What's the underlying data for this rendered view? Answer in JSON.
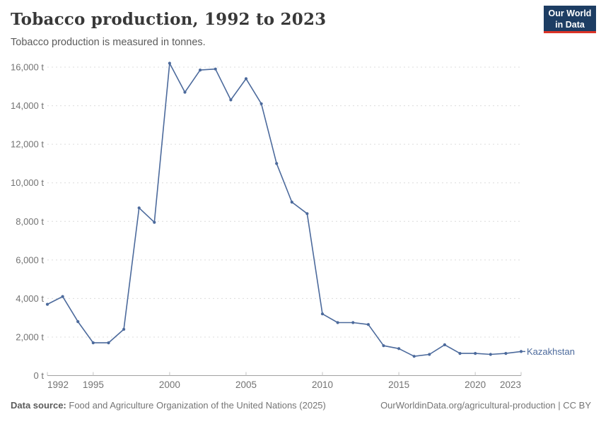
{
  "header": {
    "title": "Tobacco production, 1992 to 2023",
    "subtitle": "Tobacco production is measured in tonnes.",
    "logo": {
      "line1": "Our World",
      "line2": "in Data",
      "bg_color": "#1d3d63",
      "accent_color": "#dc3327"
    }
  },
  "chart_data": {
    "type": "line",
    "title": "Tobacco production, 1992 to 2023",
    "subtitle": "Tobacco production is measured in tonnes.",
    "xlabel": "",
    "ylabel": "",
    "unit": "t",
    "grid": "horizontal-dashed",
    "legend_position": "end-of-line-label",
    "x_range": [
      1992,
      2023
    ],
    "ylim": [
      0,
      16000
    ],
    "colors": {
      "line": "#4C6A9C",
      "gridline": "#dcdcdc",
      "axis": "#a1a1a1",
      "tick": "#c3c3c3",
      "axis_text": "#737373"
    },
    "series": [
      {
        "name": "Kazakhstan",
        "color": "#4C6A9C",
        "x": [
          1992,
          1993,
          1994,
          1995,
          1996,
          1997,
          1998,
          1999,
          2000,
          2001,
          2002,
          2003,
          2004,
          2005,
          2006,
          2007,
          2008,
          2009,
          2010,
          2011,
          2012,
          2013,
          2014,
          2015,
          2016,
          2017,
          2018,
          2019,
          2020,
          2021,
          2022,
          2023
        ],
        "values": [
          3700,
          4100,
          2800,
          1700,
          1700,
          2400,
          8700,
          7950,
          16200,
          14700,
          15850,
          15900,
          14300,
          15400,
          14100,
          11000,
          9000,
          8400,
          3200,
          2750,
          2750,
          2650,
          1550,
          1400,
          1000,
          1100,
          1600,
          1150,
          1150,
          1100,
          1150,
          1250
        ]
      }
    ],
    "yticks": [
      {
        "v": 0,
        "label": "0 t"
      },
      {
        "v": 2000,
        "label": "2,000 t"
      },
      {
        "v": 4000,
        "label": "4,000 t"
      },
      {
        "v": 6000,
        "label": "6,000 t"
      },
      {
        "v": 8000,
        "label": "8,000 t"
      },
      {
        "v": 10000,
        "label": "10,000 t"
      },
      {
        "v": 12000,
        "label": "12,000 t"
      },
      {
        "v": 14000,
        "label": "14,000 t"
      },
      {
        "v": 16000,
        "label": "16,000 t"
      }
    ],
    "xticks": [
      {
        "v": 1992,
        "label": "1992"
      },
      {
        "v": 1995,
        "label": "1995"
      },
      {
        "v": 2000,
        "label": "2000"
      },
      {
        "v": 2005,
        "label": "2005"
      },
      {
        "v": 2010,
        "label": "2010"
      },
      {
        "v": 2015,
        "label": "2015"
      },
      {
        "v": 2020,
        "label": "2020"
      },
      {
        "v": 2023,
        "label": "2023"
      }
    ]
  },
  "footer": {
    "source_label": "Data source:",
    "source_text": "Food and Agriculture Organization of the United Nations (2025)",
    "attribution": "OurWorldinData.org/agricultural-production | CC BY"
  }
}
